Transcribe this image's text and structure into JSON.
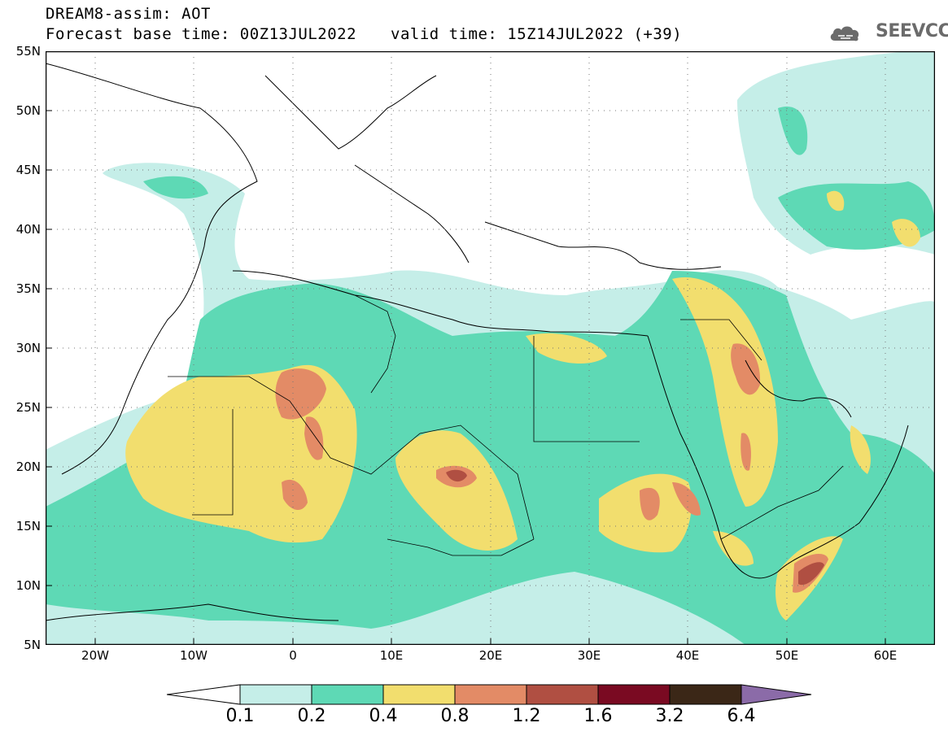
{
  "header": {
    "line1": "DREAM8-assim: AOT",
    "line2": "Forecast base time: 00Z13JUL2022",
    "valid": "valid time: 15Z14JUL2022 (+39)"
  },
  "logo": {
    "text": "SEEVCCC",
    "icon": "cloud-icon"
  },
  "map": {
    "lat_labels": [
      "55N",
      "50N",
      "45N",
      "40N",
      "35N",
      "30N",
      "25N",
      "20N",
      "15N",
      "10N",
      "5N"
    ],
    "lon_labels": [
      "20W",
      "10W",
      "0",
      "10E",
      "20E",
      "30E",
      "40E",
      "50E",
      "60E"
    ],
    "extent": {
      "lon": [
        -25,
        65
      ],
      "lat": [
        5,
        55
      ]
    }
  },
  "colorbar": {
    "labels": [
      "0.1",
      "0.2",
      "0.4",
      "0.8",
      "1.2",
      "1.6",
      "3.2",
      "6.4"
    ],
    "colors": [
      "#c5eee8",
      "#5ed9b5",
      "#f2de6e",
      "#e38b66",
      "#b04f42",
      "#7a0a22",
      "#3b2717",
      "#8b6ba8"
    ],
    "under_color": "#ffffff"
  }
}
